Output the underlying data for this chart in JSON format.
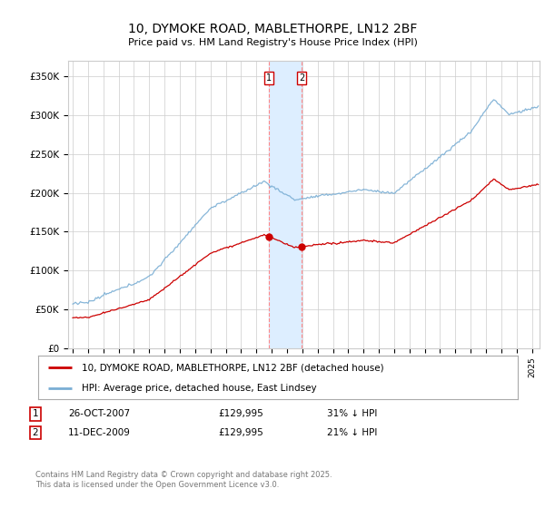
{
  "title": "10, DYMOKE ROAD, MABLETHORPE, LN12 2BF",
  "subtitle": "Price paid vs. HM Land Registry's House Price Index (HPI)",
  "ylabel_ticks": [
    "£0",
    "£50K",
    "£100K",
    "£150K",
    "£200K",
    "£250K",
    "£300K",
    "£350K"
  ],
  "ylim": [
    0,
    370000
  ],
  "xlim_start": 1994.7,
  "xlim_end": 2025.5,
  "transaction1_date": "26-OCT-2007",
  "transaction1_price": 129995,
  "transaction1_hpi": "31% ↓ HPI",
  "transaction1_x": 2007.82,
  "transaction2_date": "11-DEC-2009",
  "transaction2_price": 129995,
  "transaction2_hpi": "21% ↓ HPI",
  "transaction2_x": 2009.95,
  "legend_property": "10, DYMOKE ROAD, MABLETHORPE, LN12 2BF (detached house)",
  "legend_hpi": "HPI: Average price, detached house, East Lindsey",
  "footer": "Contains HM Land Registry data © Crown copyright and database right 2025.\nThis data is licensed under the Open Government Licence v3.0.",
  "line_property_color": "#cc0000",
  "line_hpi_color": "#7aaed4",
  "shading_color": "#ddeeff",
  "grid_color": "#cccccc",
  "bg_color": "#ffffff"
}
